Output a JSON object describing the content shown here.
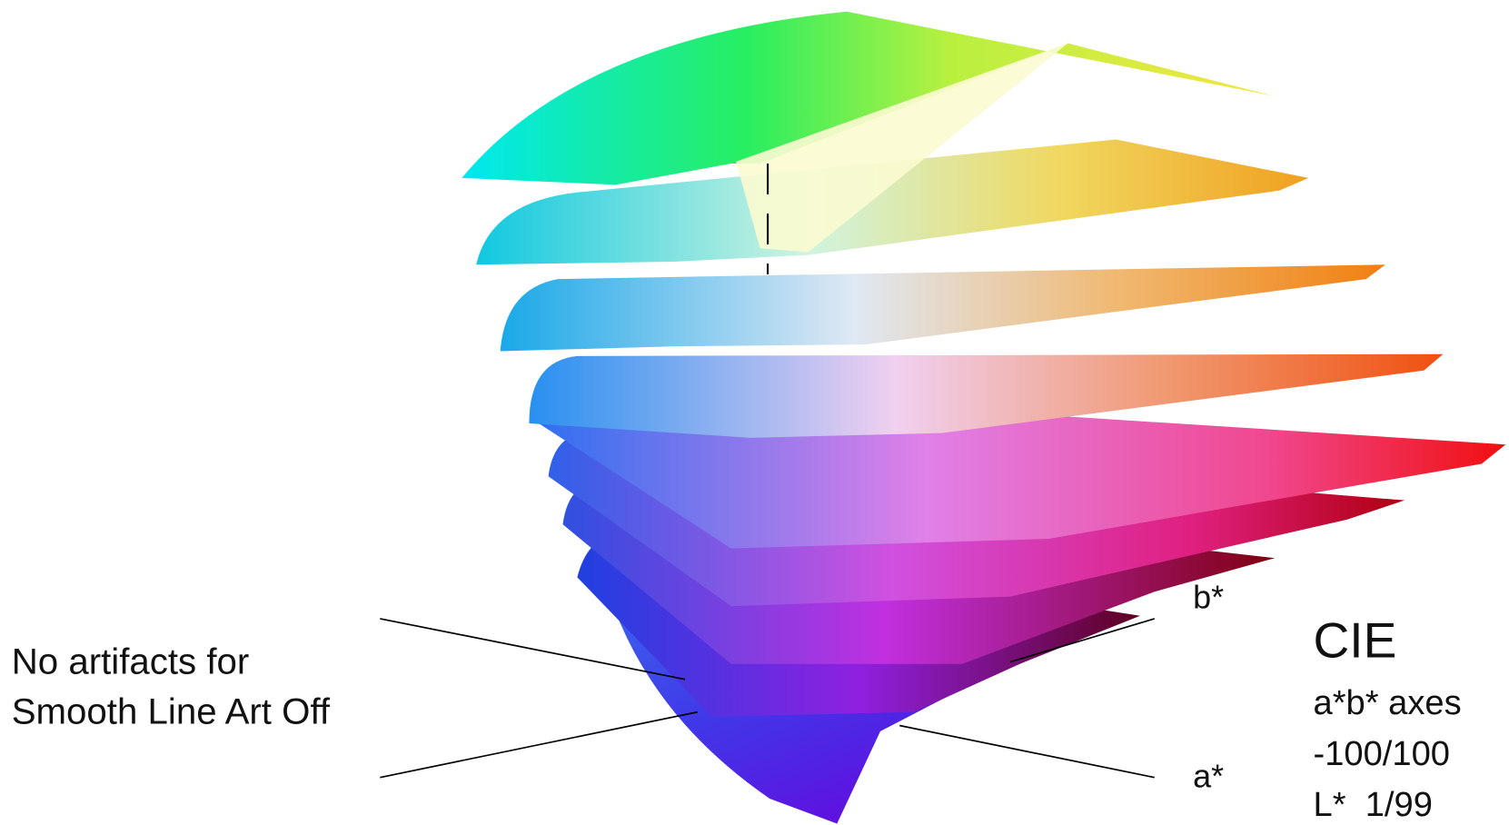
{
  "annotation": {
    "lines": [
      "No artifacts for",
      "Smooth Line Art Off"
    ]
  },
  "axis_labels": {
    "b": "b*",
    "a": "a*"
  },
  "legend": {
    "title": "CIE",
    "lines": [
      "a*b* axes",
      "-100/100",
      "L*  1/99"
    ]
  }
}
